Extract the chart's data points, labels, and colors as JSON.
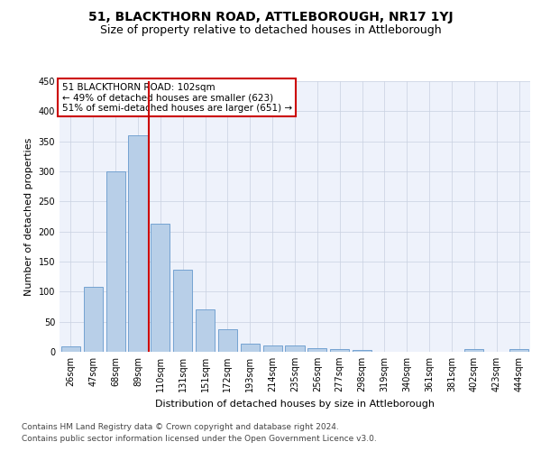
{
  "title": "51, BLACKTHORN ROAD, ATTLEBOROUGH, NR17 1YJ",
  "subtitle": "Size of property relative to detached houses in Attleborough",
  "xlabel": "Distribution of detached houses by size in Attleborough",
  "ylabel": "Number of detached properties",
  "categories": [
    "26sqm",
    "47sqm",
    "68sqm",
    "89sqm",
    "110sqm",
    "131sqm",
    "151sqm",
    "172sqm",
    "193sqm",
    "214sqm",
    "235sqm",
    "256sqm",
    "277sqm",
    "298sqm",
    "319sqm",
    "340sqm",
    "361sqm",
    "381sqm",
    "402sqm",
    "423sqm",
    "444sqm"
  ],
  "values": [
    9,
    108,
    300,
    360,
    213,
    136,
    70,
    38,
    13,
    11,
    10,
    6,
    5,
    3,
    0,
    0,
    0,
    0,
    4,
    0,
    4
  ],
  "bar_color": "#b8cfe8",
  "bar_edgecolor": "#6699cc",
  "vline_x": 3.5,
  "vline_color": "#cc0000",
  "annotation_text": "51 BLACKTHORN ROAD: 102sqm\n← 49% of detached houses are smaller (623)\n51% of semi-detached houses are larger (651) →",
  "annotation_box_color": "#ffffff",
  "annotation_box_edgecolor": "#cc0000",
  "ylim": [
    0,
    450
  ],
  "yticks": [
    0,
    50,
    100,
    150,
    200,
    250,
    300,
    350,
    400,
    450
  ],
  "footnote1": "Contains HM Land Registry data © Crown copyright and database right 2024.",
  "footnote2": "Contains public sector information licensed under the Open Government Licence v3.0.",
  "bg_color": "#eef2fb",
  "grid_color": "#c8d0e0",
  "title_fontsize": 10,
  "subtitle_fontsize": 9,
  "axis_label_fontsize": 8,
  "tick_fontsize": 7,
  "annotation_fontsize": 7.5,
  "footnote_fontsize": 6.5
}
